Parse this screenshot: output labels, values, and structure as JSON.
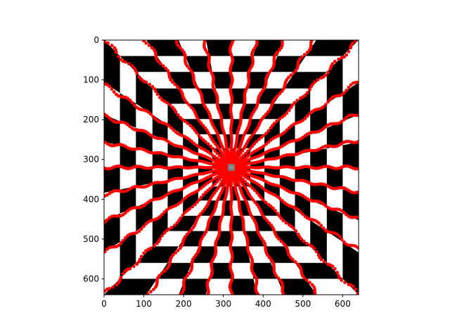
{
  "chart_data": {
    "type": "scatter",
    "title": "",
    "xlabel": "",
    "ylabel": "",
    "xlim": [
      0,
      640
    ],
    "ylim": [
      640,
      0
    ],
    "y_axis_inverted": true,
    "grid": false,
    "background_image": "checkerboard warped toward the image center",
    "x_ticks": [
      0,
      100,
      200,
      300,
      400,
      500,
      600
    ],
    "y_ticks": [
      0,
      100,
      200,
      300,
      400,
      500,
      600
    ],
    "x_tick_labels": [
      "0",
      "100",
      "200",
      "300",
      "400",
      "500",
      "600"
    ],
    "y_tick_labels": [
      "0",
      "100",
      "200",
      "300",
      "400",
      "500",
      "600"
    ],
    "series": [
      {
        "marker_color": "#ff0000",
        "marker": "circle",
        "pattern": "points arranged along rays radiating from the center",
        "center": [
          320,
          320
        ],
        "ray_angles_deg": [
          0,
          11,
          22,
          33,
          45,
          56,
          67,
          78,
          90,
          101,
          112,
          123,
          135,
          146,
          157,
          168,
          180,
          191,
          202,
          213,
          225,
          236,
          247,
          258,
          270,
          281,
          292,
          303,
          315,
          326,
          337,
          348
        ]
      }
    ]
  },
  "colors": {
    "checker_dark": "#000000",
    "checker_light": "#ffffff",
    "points": "#ff0000",
    "axes": "#000000"
  }
}
